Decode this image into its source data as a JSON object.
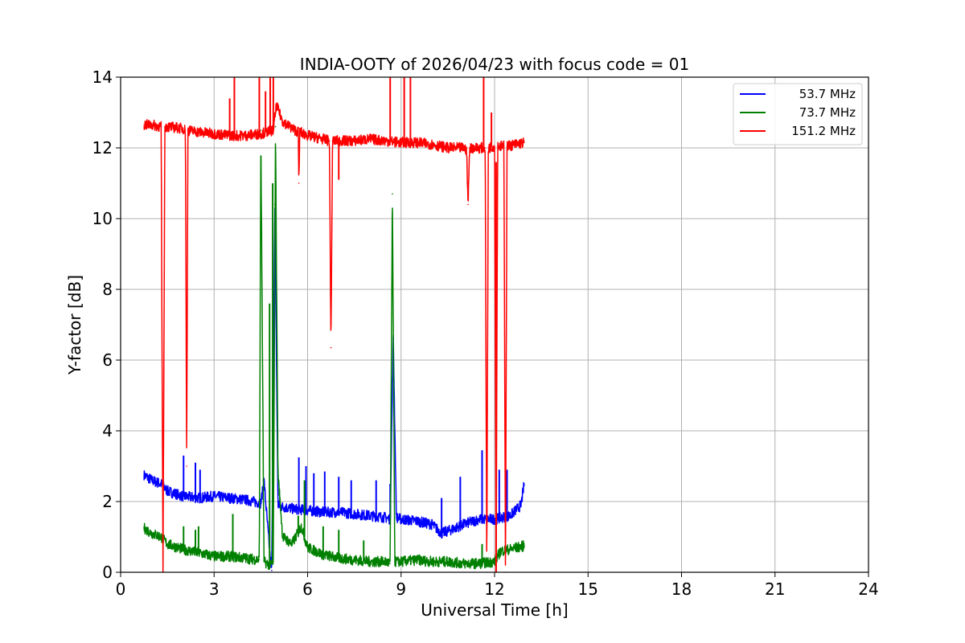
{
  "chart_data": {
    "type": "line",
    "title": "INDIA-OOTY of 2026/04/23 with focus code = 01",
    "xlabel": "Universal Time [h]",
    "ylabel": "Y-factor [dB]",
    "xlim": [
      0,
      24
    ],
    "ylim": [
      0,
      14
    ],
    "xticks": [
      0,
      3,
      6,
      9,
      12,
      15,
      18,
      21,
      24
    ],
    "yticks": [
      0,
      2,
      4,
      6,
      8,
      10,
      12,
      14
    ],
    "grid": true,
    "legend_position": "top-right",
    "series": [
      {
        "name": "53.7 MHz",
        "label": "  53.7 MHz",
        "color": "#0000ff",
        "x": [
          0.75,
          1.0,
          1.3,
          1.5,
          2.0,
          2.5,
          3.0,
          3.5,
          4.0,
          4.5,
          4.6,
          4.8,
          4.85,
          4.95,
          5.05,
          5.2,
          5.5,
          6.0,
          6.5,
          7.0,
          7.5,
          8.0,
          8.5,
          8.65,
          8.75,
          8.85,
          9.0,
          9.5,
          10.0,
          10.3,
          10.6,
          11.0,
          11.5,
          12.0,
          12.5,
          12.85,
          12.95
        ],
        "y": [
          2.75,
          2.6,
          2.5,
          2.3,
          2.15,
          2.1,
          2.15,
          2.1,
          2.05,
          1.95,
          2.6,
          0.4,
          0.05,
          10.4,
          1.9,
          1.85,
          1.8,
          1.75,
          1.7,
          1.7,
          1.65,
          1.6,
          1.55,
          1.5,
          6.6,
          1.55,
          1.5,
          1.45,
          1.35,
          1.1,
          1.2,
          1.35,
          1.5,
          1.5,
          1.6,
          1.9,
          2.5
        ],
        "spikes": [
          [
            2.02,
            3.3
          ],
          [
            2.4,
            3.1
          ],
          [
            2.55,
            2.9
          ],
          [
            4.88,
            4.9
          ],
          [
            5.72,
            3.25
          ],
          [
            5.95,
            3.0
          ],
          [
            6.2,
            2.8
          ],
          [
            6.55,
            2.85
          ],
          [
            7.0,
            2.7
          ],
          [
            7.4,
            2.6
          ],
          [
            8.2,
            2.6
          ],
          [
            8.65,
            2.5
          ],
          [
            10.3,
            2.1
          ],
          [
            10.9,
            2.7
          ],
          [
            11.6,
            3.45
          ],
          [
            12.15,
            2.9
          ],
          [
            12.4,
            2.9
          ]
        ]
      },
      {
        "name": "73.7 MHz",
        "label": "  73.7 MHz",
        "color": "#008000",
        "x": [
          0.75,
          1.0,
          1.3,
          1.5,
          2.0,
          2.5,
          3.0,
          3.5,
          4.0,
          4.45,
          4.5,
          4.6,
          4.8,
          4.9,
          4.97,
          5.05,
          5.2,
          5.5,
          5.8,
          6.0,
          6.5,
          7.0,
          7.5,
          8.0,
          8.5,
          8.65,
          8.72,
          8.8,
          9.0,
          9.5,
          10.0,
          10.5,
          11.0,
          11.5,
          12.0,
          12.2,
          12.5,
          12.95
        ],
        "y": [
          1.25,
          1.1,
          1.0,
          0.8,
          0.65,
          0.55,
          0.45,
          0.45,
          0.4,
          0.35,
          12.5,
          0.3,
          0.2,
          0.3,
          12.6,
          2.8,
          1.0,
          0.8,
          1.3,
          0.7,
          0.5,
          0.4,
          0.35,
          0.3,
          0.3,
          0.25,
          10.7,
          0.3,
          0.3,
          0.35,
          0.3,
          0.3,
          0.25,
          0.25,
          0.3,
          0.6,
          0.65,
          0.75
        ],
        "spikes": [
          [
            2.02,
            1.3
          ],
          [
            2.4,
            1.2
          ],
          [
            2.5,
            1.3
          ],
          [
            3.6,
            1.65
          ],
          [
            4.78,
            7.6
          ],
          [
            4.88,
            11.0
          ],
          [
            5.7,
            1.6
          ],
          [
            5.9,
            2.6
          ],
          [
            6.5,
            1.3
          ],
          [
            7.0,
            1.2
          ],
          [
            7.8,
            0.9
          ],
          [
            11.6,
            0.8
          ]
        ]
      },
      {
        "name": "151.2 MHz",
        "label": "151.2 MHz",
        "color": "#ff0000",
        "x": [
          0.75,
          1.0,
          1.3,
          1.36,
          1.42,
          1.5,
          2.0,
          2.08,
          2.12,
          2.16,
          2.5,
          3.0,
          3.5,
          4.0,
          4.5,
          4.9,
          5.0,
          5.2,
          5.5,
          5.7,
          5.72,
          5.75,
          6.0,
          6.5,
          6.7,
          6.75,
          6.8,
          7.0,
          7.5,
          8.0,
          8.5,
          9.0,
          9.5,
          10.0,
          10.5,
          11.0,
          11.1,
          11.15,
          11.2,
          11.5,
          11.7,
          11.75,
          11.8,
          12.0,
          12.05,
          12.1,
          12.15,
          12.3,
          12.35,
          12.4,
          12.95
        ],
        "y": [
          12.65,
          12.65,
          12.6,
          0.0,
          12.6,
          12.6,
          12.55,
          12.5,
          3.0,
          12.5,
          12.45,
          12.4,
          12.35,
          12.35,
          12.4,
          12.5,
          13.2,
          12.75,
          12.55,
          12.45,
          11.0,
          12.45,
          12.35,
          12.25,
          12.2,
          6.35,
          12.2,
          12.2,
          12.2,
          12.25,
          12.2,
          12.15,
          12.15,
          12.1,
          12.0,
          12.0,
          11.95,
          10.4,
          12.0,
          12.0,
          12.0,
          0.0,
          12.0,
          12.05,
          0.0,
          12.05,
          12.05,
          12.05,
          0.0,
          12.05,
          12.15
        ],
        "spikes": [
          [
            3.5,
            13.4
          ],
          [
            3.65,
            14.0
          ],
          [
            4.45,
            14.0
          ],
          [
            4.65,
            13.6
          ],
          [
            4.8,
            14.0
          ],
          [
            4.9,
            14.0
          ],
          [
            7.0,
            11.1
          ],
          [
            8.65,
            14.0
          ],
          [
            9.1,
            14.0
          ],
          [
            9.3,
            14.0
          ],
          [
            11.65,
            14.0
          ],
          [
            11.9,
            13.0
          ],
          [
            12.05,
            11.6
          ]
        ]
      }
    ]
  }
}
